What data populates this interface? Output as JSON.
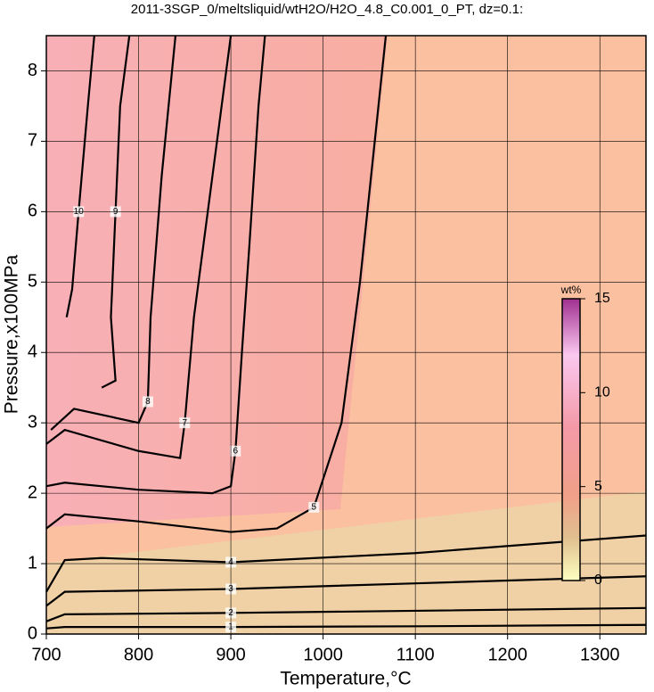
{
  "chart_data": {
    "type": "contour",
    "title": "2011-3SGP_0/meltsliquid/wtH2O/H2O_4.8_C0.001_0_PT, dz=0.1:",
    "x_label": "Temperature,°C",
    "y_label": "Pressure,x100MPa",
    "xlim": [
      700,
      1350
    ],
    "ylim": [
      0,
      8.5
    ],
    "xticks": [
      700,
      800,
      900,
      1000,
      1100,
      1200,
      1300
    ],
    "yticks": [
      0,
      1,
      2,
      3,
      4,
      5,
      6,
      7,
      8
    ],
    "grid": true,
    "contours": [
      {
        "level": 1,
        "x": [
          700,
          720,
          900,
          1100,
          1350
        ],
        "y": [
          0.08,
          0.1,
          0.1,
          0.11,
          0.13
        ]
      },
      {
        "level": 2,
        "x": [
          700,
          720,
          900,
          1100,
          1350
        ],
        "y": [
          0.18,
          0.28,
          0.3,
          0.33,
          0.37
        ]
      },
      {
        "level": 3,
        "x": [
          700,
          720,
          900,
          1100,
          1350
        ],
        "y": [
          0.4,
          0.6,
          0.64,
          0.72,
          0.82
        ]
      },
      {
        "level": 4,
        "x": [
          700,
          720,
          760,
          900,
          1100,
          1350
        ],
        "y": [
          0.6,
          1.05,
          1.08,
          1.02,
          1.15,
          1.4
        ]
      },
      {
        "level": 5,
        "x": [
          700,
          720,
          800,
          900,
          950,
          990,
          1020,
          1040,
          1060,
          1068
        ],
        "y": [
          1.5,
          1.7,
          1.6,
          1.45,
          1.5,
          1.8,
          3.0,
          5.0,
          7.5,
          8.5
        ]
      },
      {
        "level": 6,
        "x": [
          700,
          720,
          800,
          880,
          900,
          905,
          912,
          920,
          930,
          937
        ],
        "y": [
          2.1,
          2.15,
          2.05,
          2.0,
          2.1,
          2.6,
          4.0,
          5.5,
          7.5,
          8.5
        ]
      },
      {
        "level": 7,
        "x": [
          700,
          720,
          800,
          845,
          850,
          860,
          880,
          900
        ],
        "y": [
          2.7,
          2.9,
          2.6,
          2.5,
          3.0,
          4.5,
          6.5,
          8.5
        ]
      },
      {
        "level": 8,
        "x": [
          705,
          730,
          800,
          810,
          813,
          825,
          840
        ],
        "y": [
          2.9,
          3.2,
          3.0,
          3.3,
          4.5,
          6.5,
          8.5
        ]
      },
      {
        "level": 9,
        "x": [
          760,
          775,
          770,
          775,
          780,
          790
        ],
        "y": [
          3.5,
          3.6,
          4.5,
          6.0,
          7.5,
          8.5
        ]
      },
      {
        "level": 10,
        "x": [
          722,
          728,
          735,
          745,
          752
        ],
        "y": [
          4.5,
          4.9,
          6.0,
          7.5,
          8.5
        ]
      }
    ],
    "colorbar": {
      "label": "wt%",
      "lim": [
        0,
        15
      ],
      "ticks": [
        0,
        5,
        10,
        15
      ]
    }
  }
}
